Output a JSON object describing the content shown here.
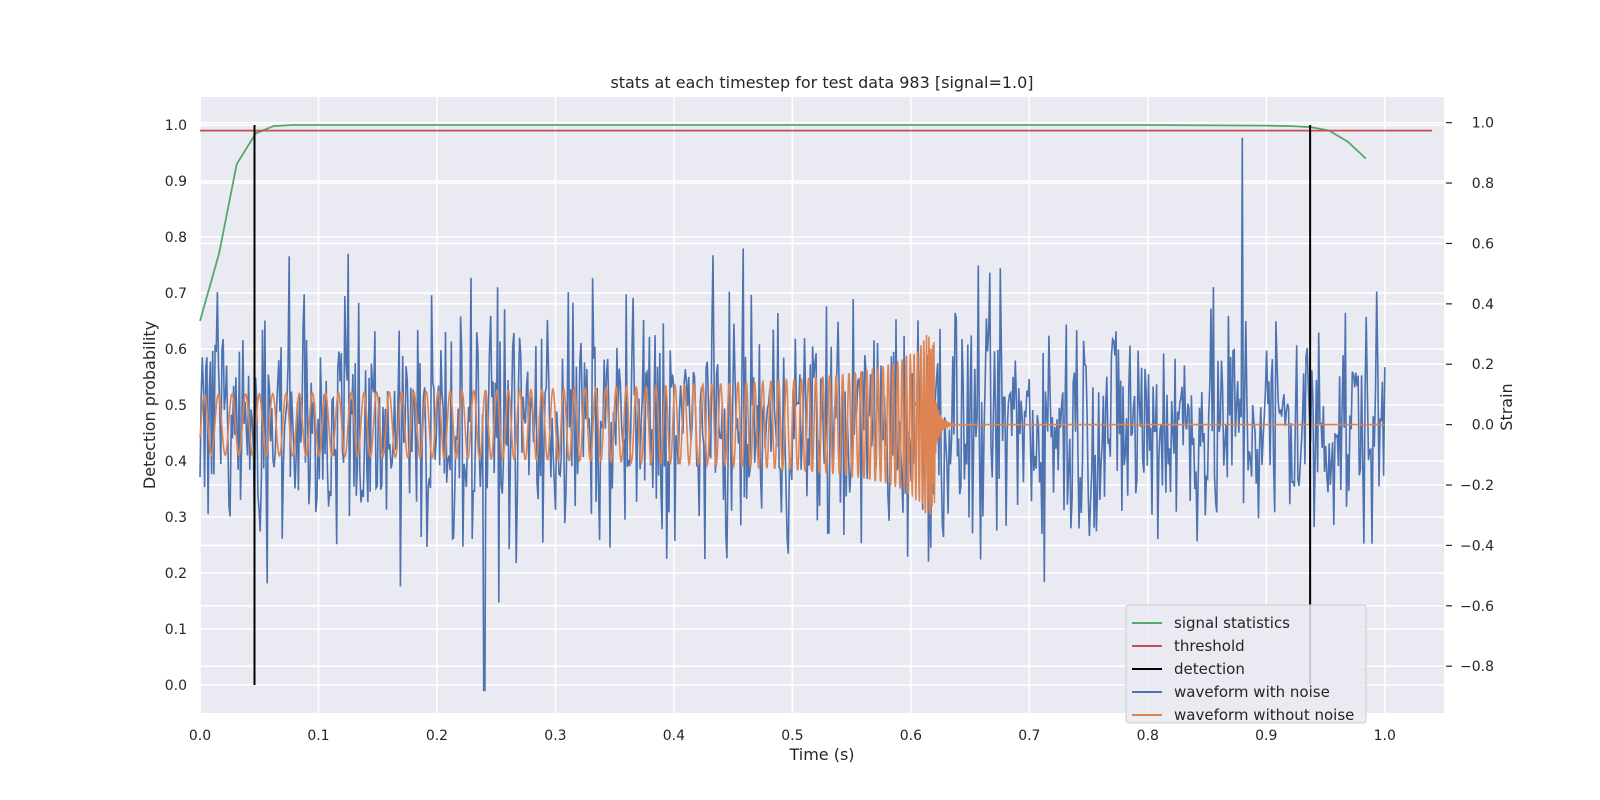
{
  "chart_data": {
    "type": "line",
    "title": "stats at each timestep for test data 983 [signal=1.0]",
    "xlabel": "Time (s)",
    "ylabel": "Detection probability",
    "y2label": "Strain",
    "xlim": [
      0.0,
      1.05
    ],
    "ylim": [
      -0.05,
      1.05
    ],
    "y2lim": [
      -0.955,
      1.085
    ],
    "xticks": [
      0.0,
      0.1,
      0.2,
      0.3,
      0.4,
      0.5,
      0.6,
      0.7,
      0.8,
      0.9,
      1.0
    ],
    "yticks": [
      0.0,
      0.1,
      0.2,
      0.3,
      0.4,
      0.5,
      0.6,
      0.7,
      0.8,
      0.9,
      1.0
    ],
    "y2ticks": [
      -0.8,
      -0.6,
      -0.4,
      -0.2,
      0.0,
      0.2,
      0.4,
      0.6,
      0.8,
      1.0
    ],
    "xtick_labels": [
      "0.0",
      "0.1",
      "0.2",
      "0.3",
      "0.4",
      "0.5",
      "0.6",
      "0.7",
      "0.8",
      "0.9",
      "1.0"
    ],
    "ytick_labels": [
      "0.0",
      "0.1",
      "0.2",
      "0.3",
      "0.4",
      "0.5",
      "0.6",
      "0.7",
      "0.8",
      "0.9",
      "1.0"
    ],
    "y2tick_labels": [
      "−0.8",
      "−0.6",
      "−0.4",
      "−0.2",
      "0.0",
      "0.2",
      "0.4",
      "0.6",
      "0.8",
      "1.0"
    ],
    "grid": true,
    "legend_position": "bottom-right",
    "series": [
      {
        "name": "signal statistics",
        "color": "#55a868",
        "axis": "left",
        "x": [
          0.0,
          0.016,
          0.031,
          0.047,
          0.062,
          0.078,
          0.1,
          0.2,
          0.3,
          0.4,
          0.5,
          0.6,
          0.7,
          0.8,
          0.9,
          0.922,
          0.938,
          0.953,
          0.969,
          0.984
        ],
        "y": [
          0.65,
          0.77,
          0.93,
          0.985,
          0.998,
          1.0,
          1.0,
          1.0,
          1.0,
          1.0,
          1.0,
          1.0,
          1.0,
          1.0,
          0.999,
          0.998,
          0.996,
          0.99,
          0.97,
          0.94
        ]
      },
      {
        "name": "threshold",
        "color": "#c44e52",
        "axis": "left",
        "x": [
          0.0,
          1.04
        ],
        "y": [
          0.99,
          0.99
        ]
      },
      {
        "name": "detection",
        "color": "#000000",
        "axis": "left",
        "type": "vlines",
        "x": [
          0.046,
          0.937
        ],
        "y": [
          [
            0.0,
            1.0
          ],
          [
            0.0,
            1.0
          ]
        ]
      },
      {
        "name": "waveform with noise",
        "color": "#4c72b0",
        "axis": "right",
        "description_samples": "noisy strain, amplitude ~±0.6, peaks near 0.88 (1.0), 0.24 (-0.88)"
      },
      {
        "name": "waveform without noise",
        "color": "#dd8452",
        "axis": "right",
        "description_samples": "chirp oscillation ±0.1 rising to ±0.28 ending near t=0.62, zero afterwards"
      }
    ],
    "legend": [
      "signal statistics",
      "threshold",
      "detection",
      "waveform with noise",
      "waveform without noise"
    ]
  }
}
